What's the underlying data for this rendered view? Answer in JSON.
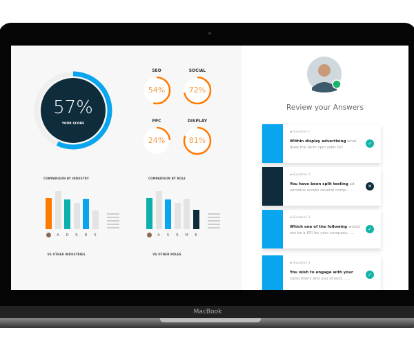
{
  "device": {
    "brand": "MacBook"
  },
  "score": {
    "value": 57,
    "label_value": "57%",
    "caption": "YOUR SCORE",
    "colors": {
      "ring": "#0aa5ef",
      "fill": "#0f2c3c"
    }
  },
  "gauges": [
    {
      "name": "SEO",
      "value": 54,
      "label": "54%"
    },
    {
      "name": "SOCIAL",
      "value": 72,
      "label": "72%"
    },
    {
      "name": "PPC",
      "value": 24,
      "label": "24%"
    },
    {
      "name": "DISPLAY",
      "value": 81,
      "label": "81%"
    }
  ],
  "gauge_color": "#ff7a00",
  "chart_data": [
    {
      "type": "bar",
      "title": "COMPARISON BY INDUSTRY",
      "categories": [
        "you",
        "A",
        "D",
        "R",
        "B",
        "S"
      ],
      "values": [
        45,
        55,
        43,
        38,
        44,
        27
      ],
      "colors": [
        "#ff7a00",
        "#e3e3e3",
        "#0bb0ad",
        "#e3e3e3",
        "#0aa5ef",
        "#e3e3e3"
      ]
    },
    {
      "type": "bar",
      "title": "COMPARISON BY ROLE",
      "categories": [
        "you",
        "A",
        "S",
        "R",
        "M",
        "E"
      ],
      "values": [
        45,
        55,
        43,
        38,
        44,
        28
      ],
      "colors": [
        "#0bb0ad",
        "#e3e3e3",
        "#0aa5ef",
        "#e3e3e3",
        "#e3e3e3",
        "#0f2c3c"
      ]
    },
    {
      "type": "bar",
      "title": "VS OTHER INDUSTRIES",
      "values": [
        22,
        32,
        19,
        15,
        21,
        5
      ],
      "colors": [
        "#ff7a00",
        "#e3e3e3",
        "#e3e3e3",
        "#e3e3e3",
        "#e3e3e3",
        "#e3e3e3"
      ]
    },
    {
      "type": "bar",
      "title": "VS OTHER ROLES",
      "values": [
        22,
        32,
        20,
        15,
        21,
        5
      ],
      "colors": [
        "#0bb0ad",
        "#e3e3e3",
        "#0aa5ef",
        "#e3e3e3",
        "#0f2c3c",
        "#e3e3e3"
      ]
    }
  ],
  "review": {
    "title": "Review your Answers",
    "questions": [
      {
        "number": "Question 1",
        "bold": "Within display advertising",
        "rest": " what does the term cpm refer to?",
        "correct": true,
        "color": "#0aa5ef"
      },
      {
        "number": "Question 2",
        "bold": "You have been split testing",
        "rest": " ad versions across several camp.....",
        "correct": false,
        "color": "#0f2c3c"
      },
      {
        "number": "Question 3",
        "bold": "Which one of the following",
        "rest": " would not be a KPI for your company......",
        "correct": true,
        "color": "#0aa5ef"
      },
      {
        "number": "Question 4",
        "bold": "You wish to engage with your",
        "rest": " subscribers and you should.......",
        "correct": true,
        "color": "#0aa5ef"
      }
    ]
  }
}
